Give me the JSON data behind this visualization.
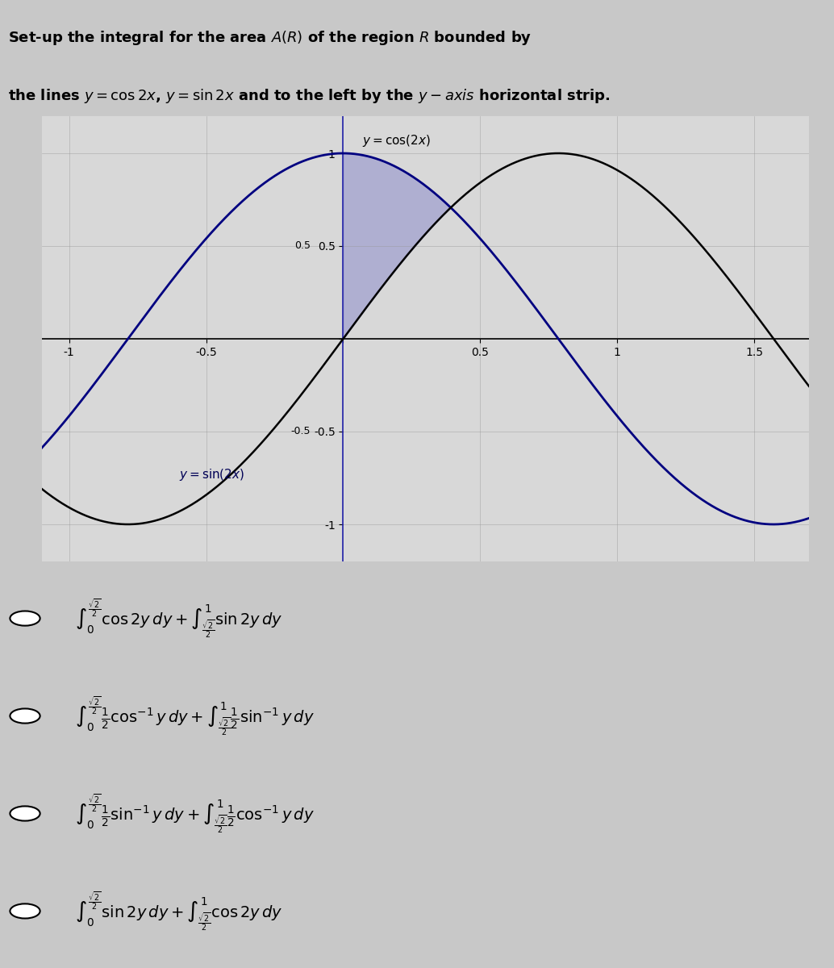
{
  "title_line1": "Set-up the integral for the area $A(R)$ of the region $R$ bounded by",
  "title_line2": "the lines $y = \\cos 2x$, $y = \\sin 2x$ and to the left by the $y - \\mathit{axis}$ horizontal strip.",
  "bg_color": "#c8c8c8",
  "graph_bg": "#d8d8d8",
  "curve1_label": "$y = \\cos(2x)$",
  "curve2_label": "$y = \\sin(2x)$",
  "xmin": -1.1,
  "xmax": 1.7,
  "ymin": -1.2,
  "ymax": 1.2,
  "xticks": [
    -1,
    -0.5,
    0,
    0.5,
    1,
    1.5
  ],
  "yticks": [
    -1,
    -0.5,
    0,
    0.5,
    1
  ],
  "curve1_color": "#000080",
  "curve2_color": "#000000",
  "shade_color": "#8888cc",
  "option1_circle_color": "#ffffff",
  "option2_circle_color": "#ffffff",
  "option3_circle_color": "#ffffff",
  "option4_circle_color": "#ffffff",
  "options": [
    "$\\int_0^{\\frac{\\sqrt{2}}{2}} \\cos 2y\\,dy + \\int_{\\frac{\\sqrt{2}}{2}}^{1} \\sin 2y\\,dy$",
    "$\\int_0^{\\frac{\\sqrt{2}}{2}} \\frac{1}{2}\\cos^{-1} y\\,dy + \\int_{\\frac{\\sqrt{2}}{2}}^{1} \\frac{1}{2}\\sin^{-1} y\\,dy$",
    "$\\int_0^{\\frac{\\sqrt{2}}{2}} \\frac{1}{2}\\sin^{-1} y\\,dy + \\int_{\\frac{\\sqrt{2}}{2}}^{1} \\frac{1}{2}\\cos^{-1} y\\,dy$",
    "$\\int_0^{\\frac{\\sqrt{2}}{2}} \\sin 2y\\,dy + \\int_{\\frac{\\sqrt{2}}{2}}^{1} \\cos 2y\\,dy$"
  ]
}
